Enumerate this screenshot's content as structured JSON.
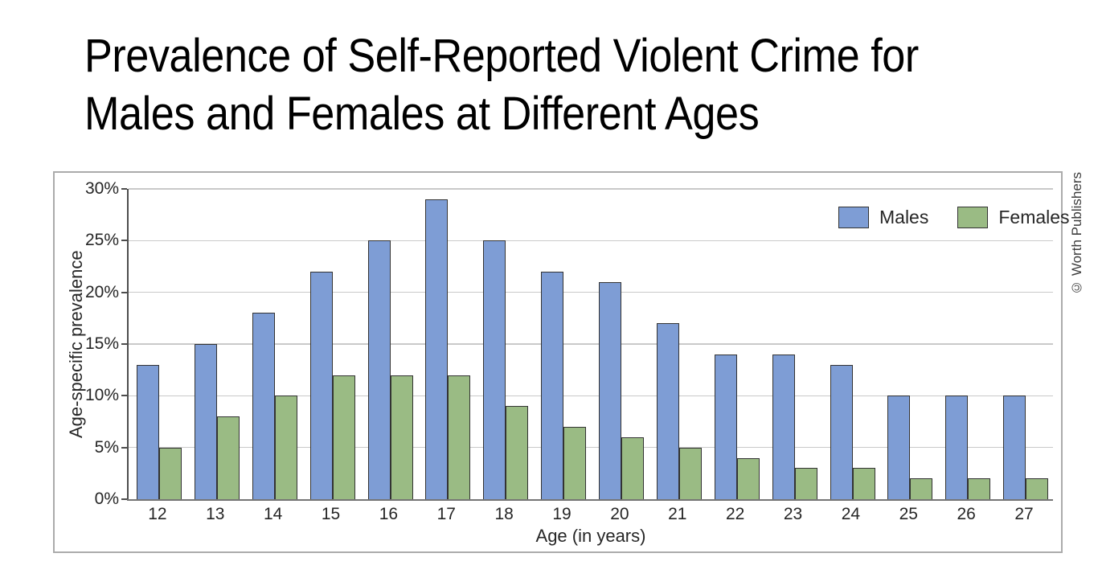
{
  "title": {
    "line1": "Prevalence of Self-Reported Violent Crime for",
    "line2": "Males and Females at Different Ages"
  },
  "credit": "© Worth Publishers",
  "chart_data": {
    "type": "bar",
    "title": "Prevalence of Self-Reported Violent Crime for Males and Females at Different Ages",
    "categories": [
      "12",
      "13",
      "14",
      "15",
      "16",
      "17",
      "18",
      "19",
      "20",
      "21",
      "22",
      "23",
      "24",
      "25",
      "26",
      "27"
    ],
    "series": [
      {
        "name": "Males",
        "color": "#7e9dd5",
        "values": [
          13,
          15,
          18,
          22,
          25,
          29,
          25,
          22,
          21,
          17,
          14,
          14,
          13,
          10,
          10,
          10
        ]
      },
      {
        "name": "Females",
        "color": "#9abb84",
        "values": [
          5,
          8,
          10,
          12,
          12,
          12,
          9,
          7,
          6,
          5,
          4,
          3,
          3,
          2,
          2,
          2
        ]
      }
    ],
    "xlabel": "Age (in years)",
    "ylabel": "Age-specific prevalence",
    "ylim": [
      0,
      30
    ],
    "ytick_step": 5,
    "ytick_labels": [
      "0%",
      "5%",
      "10%",
      "15%",
      "20%",
      "25%",
      "30%"
    ],
    "grid": true,
    "legend_position": "inside-top-right"
  },
  "colors": {
    "male_bar": "#7e9dd5",
    "female_bar": "#9abb84",
    "bar_border": "#333333",
    "gridline": "#c9c9c9",
    "y_axis": "#4d4d4d",
    "x_axis": "#757575",
    "chart_border": "#ababab",
    "text": "#262626",
    "title_text": "#000000"
  }
}
